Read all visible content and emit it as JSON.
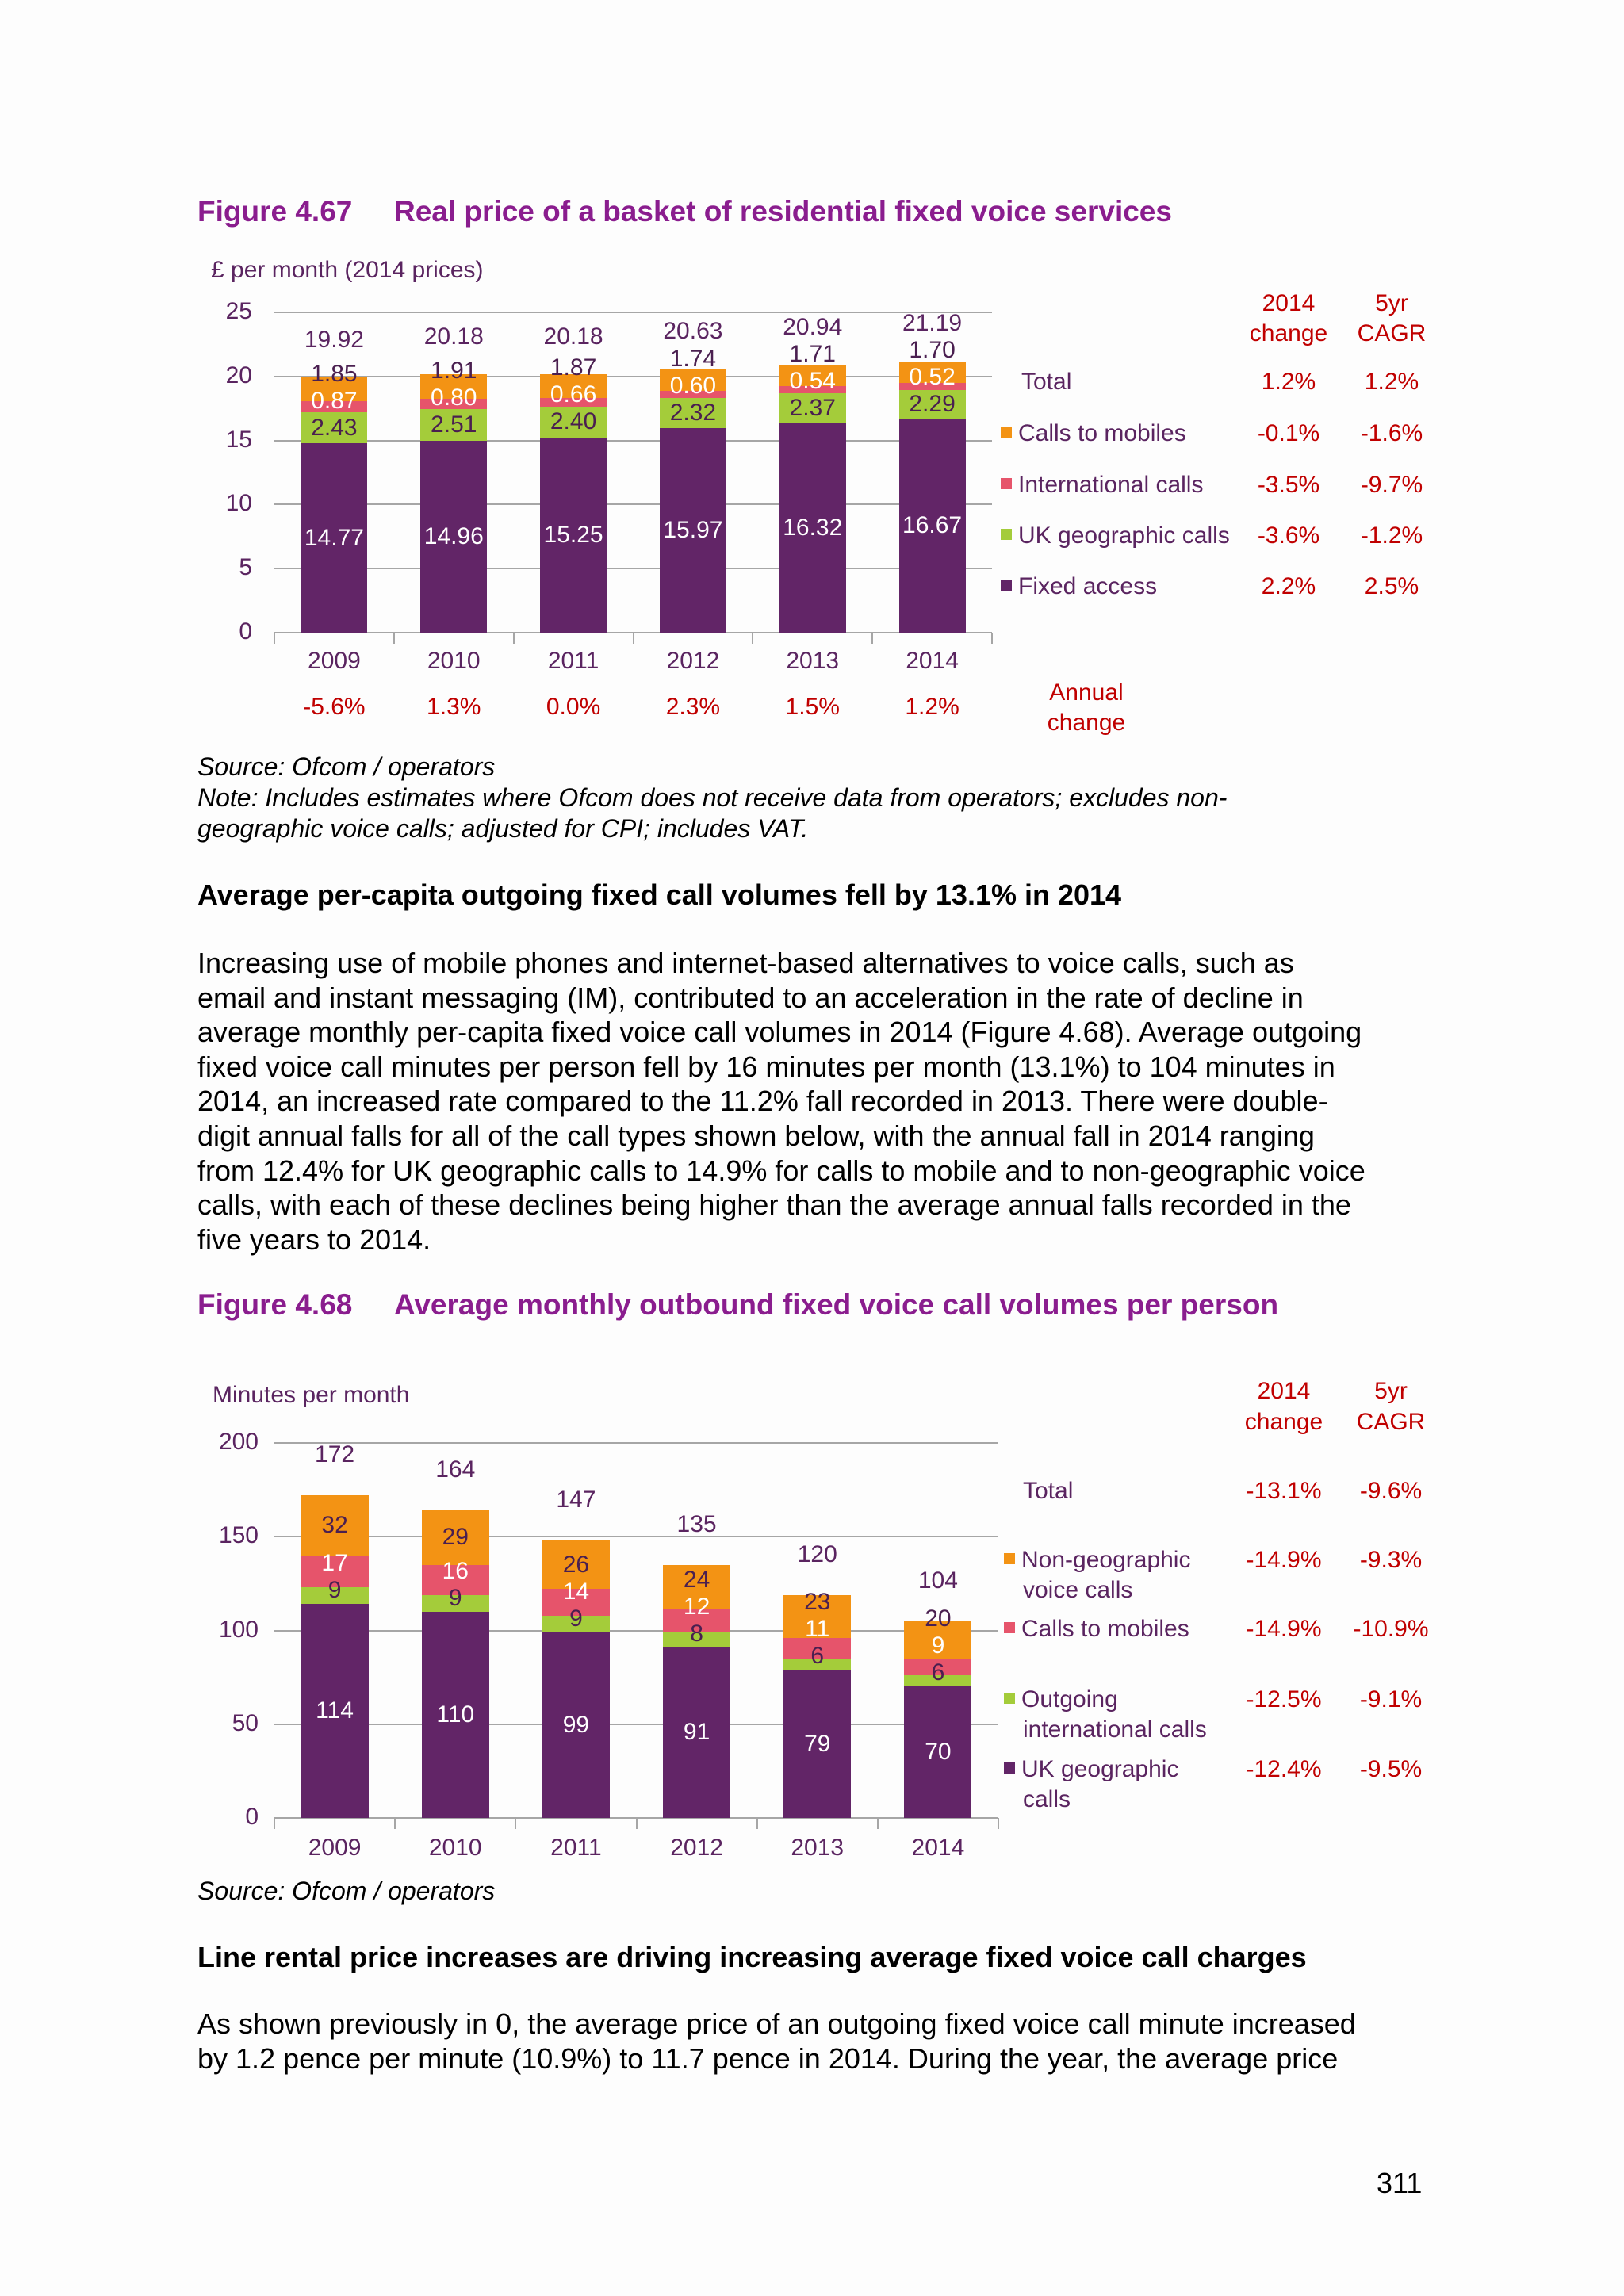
{
  "colors": {
    "fixed_access": "#622567",
    "uk_geo": "#a4cc3a",
    "international": "#e6546b",
    "mobiles": "#f39314",
    "title": "#8a1d8e",
    "change": "#c00000"
  },
  "figure_467": {
    "number": "Figure 4.67",
    "title": "Real price of a basket of residential fixed voice services",
    "source": "Source: Ofcom / operators",
    "note_lines": [
      "Note: Includes estimates where Ofcom does not receive data from operators; excludes non-",
      "geographic voice calls; adjusted for CPI; includes VAT."
    ],
    "annual_change_label": [
      "Annual",
      "change"
    ],
    "annual_change": [
      "-5.6%",
      "1.3%",
      "0.0%",
      "2.3%",
      "1.5%",
      "1.2%"
    ],
    "table_header": {
      "change": [
        "2014",
        "change"
      ],
      "cagr": [
        "5yr",
        "CAGR"
      ]
    },
    "table_rows": [
      {
        "label": "Total",
        "change": "1.2%",
        "cagr": "1.2%"
      },
      {
        "label": "Calls to mobiles",
        "change": "-0.1%",
        "cagr": "-1.6%"
      },
      {
        "label": "International calls",
        "change": "-3.5%",
        "cagr": "-9.7%"
      },
      {
        "label": "UK geographic calls",
        "change": "-3.6%",
        "cagr": "-1.2%"
      },
      {
        "label": "Fixed access",
        "change": "2.2%",
        "cagr": "2.5%"
      }
    ]
  },
  "section1": {
    "heading": "Average per-capita outgoing fixed call volumes fell by 13.1% in 2014",
    "paragraph_lines": [
      "Increasing use of mobile phones and internet-based alternatives to voice calls, such as",
      "email and instant messaging (IM), contributed to an acceleration in the rate of decline in",
      "average monthly per-capita fixed voice call volumes in 2014 (Figure 4.68). Average outgoing",
      "fixed voice call minutes per person fell by 16 minutes per month (13.1%) to 104 minutes in",
      "2014, an increased rate compared to the 11.2% fall recorded in 2013. There were double-",
      "digit annual falls for all of the call types shown below, with the annual fall in 2014 ranging",
      "from 12.4% for UK geographic calls to 14.9% for calls to mobile and to non-geographic voice",
      "calls, with each of these declines being higher than the average annual falls recorded in the",
      "five years to 2014."
    ]
  },
  "figure_468": {
    "number": "Figure 4.68",
    "title": "Average monthly outbound fixed voice call volumes per person",
    "source": "Source: Ofcom / operators",
    "table_header": {
      "change": [
        "2014",
        "change"
      ],
      "cagr": [
        "5yr",
        "CAGR"
      ]
    },
    "table_rows": [
      {
        "label": [
          "Total"
        ],
        "change": "-13.1%",
        "cagr": "-9.6%"
      },
      {
        "label": [
          "Non-geographic",
          "voice calls"
        ],
        "change": "-14.9%",
        "cagr": "-9.3%"
      },
      {
        "label": [
          "Calls to mobiles"
        ],
        "change": "-14.9%",
        "cagr": "-10.9%"
      },
      {
        "label": [
          "Outgoing",
          "international calls"
        ],
        "change": "-12.5%",
        "cagr": "-9.1%"
      },
      {
        "label": [
          "UK geographic",
          "calls"
        ],
        "change": "-12.4%",
        "cagr": "-9.5%"
      }
    ]
  },
  "section2": {
    "heading": "Line rental price increases are driving increasing average fixed voice call charges",
    "paragraph_lines": [
      "As shown previously in 0, the average price of an outgoing fixed voice call minute increased",
      "by 1.2 pence per minute (10.9%) to 11.7 pence in 2014. During the year, the average price"
    ]
  },
  "page_number": "311",
  "chart_data": [
    {
      "type": "bar",
      "stacked": true,
      "title": "Real price of a basket of residential fixed voice services",
      "ylabel": "£ per month (2014 prices)",
      "ylim": [
        0,
        25
      ],
      "yticks": [
        "0",
        "5",
        "10",
        "15",
        "20",
        "25"
      ],
      "grid": true,
      "categories": [
        "2009",
        "2010",
        "2011",
        "2012",
        "2013",
        "2014"
      ],
      "totals": [
        "19.92",
        "20.18",
        "20.18",
        "20.63",
        "20.94",
        "21.19"
      ],
      "series": [
        {
          "name": "Fixed access",
          "color": "#622567",
          "label_color": "#ffffff",
          "values": [
            14.77,
            14.96,
            15.25,
            15.97,
            16.32,
            16.67
          ],
          "labels": [
            "14.77",
            "14.96",
            "15.25",
            "15.97",
            "16.32",
            "16.67"
          ]
        },
        {
          "name": "UK geographic calls",
          "color": "#a4cc3a",
          "label_color": "#4a1f50",
          "values": [
            2.43,
            2.51,
            2.4,
            2.32,
            2.37,
            2.29
          ],
          "labels": [
            "2.43",
            "2.51",
            "2.40",
            "2.32",
            "2.37",
            "2.29"
          ]
        },
        {
          "name": "International calls",
          "color": "#e6546b",
          "label_color": "#ffffff",
          "values": [
            0.87,
            0.8,
            0.66,
            0.6,
            0.54,
            0.52
          ],
          "labels": [
            "0.87",
            "0.80",
            "0.66",
            "0.60",
            "0.54",
            "0.52"
          ]
        },
        {
          "name": "Calls to mobiles",
          "color": "#f39314",
          "label_color": "#4a1f50",
          "values": [
            1.85,
            1.91,
            1.87,
            1.74,
            1.71,
            1.7
          ],
          "labels": [
            "1.85",
            "1.91",
            "1.87",
            "1.74",
            "1.71",
            "1.70"
          ]
        }
      ],
      "legend": "right"
    },
    {
      "type": "bar",
      "stacked": true,
      "title": "Average monthly outbound fixed voice call volumes per person",
      "ylabel": "Minutes per month",
      "ylim": [
        0,
        200
      ],
      "yticks": [
        "0",
        "50",
        "100",
        "150",
        "200"
      ],
      "grid": true,
      "categories": [
        "2009",
        "2010",
        "2011",
        "2012",
        "2013",
        "2014"
      ],
      "totals": [
        "172",
        "164",
        "147",
        "135",
        "120",
        "104"
      ],
      "series": [
        {
          "name": "UK geographic calls",
          "color": "#622567",
          "label_color": "#ffffff",
          "values": [
            114,
            110,
            99,
            91,
            79,
            70
          ],
          "labels": [
            "114",
            "110",
            "99",
            "91",
            "79",
            "70"
          ]
        },
        {
          "name": "Outgoing international calls",
          "color": "#a4cc3a",
          "label_color": "#4a1f50",
          "values": [
            9,
            9,
            9,
            8,
            6,
            6
          ],
          "labels": [
            "9",
            "9",
            "9",
            "8",
            "6",
            "6"
          ]
        },
        {
          "name": "Calls to mobiles",
          "color": "#e6546b",
          "label_color": "#ffffff",
          "values": [
            17,
            16,
            14,
            12,
            11,
            9
          ],
          "labels": [
            "17",
            "16",
            "14",
            "12",
            "11",
            "9"
          ]
        },
        {
          "name": "Non-geographic voice calls",
          "color": "#f39314",
          "label_color": "#4a1f50",
          "values": [
            32,
            29,
            26,
            24,
            23,
            20
          ],
          "labels": [
            "32",
            "29",
            "26",
            "24",
            "23",
            "20"
          ]
        }
      ],
      "legend": "right"
    }
  ]
}
